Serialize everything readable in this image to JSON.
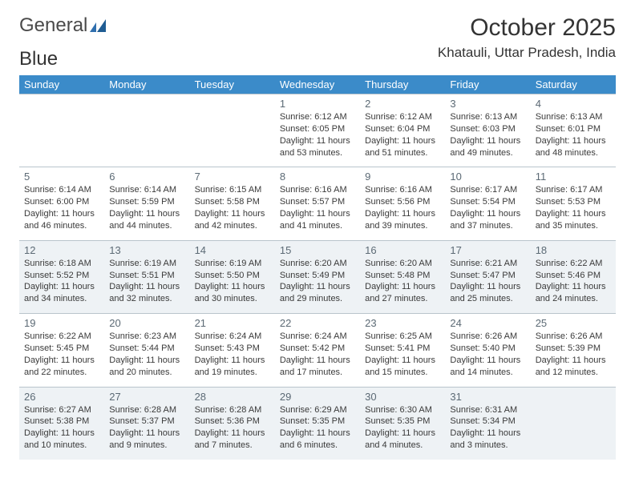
{
  "brand": {
    "name1": "General",
    "name2": "Blue",
    "color1": "#4a4a4a",
    "color2": "#2f6fae"
  },
  "title": "October 2025",
  "location": "Khatauli, Uttar Pradesh, India",
  "colors": {
    "header_bg": "#3b8bc9",
    "header_text": "#ffffff",
    "row_even_bg": "#eef2f5",
    "row_odd_bg": "#ffffff",
    "border": "#b9c4cc",
    "daynum": "#5c6a75",
    "body_text": "#3a3a3a"
  },
  "fonts": {
    "title_size": 30,
    "location_size": 17,
    "dayhead_size": 13,
    "daynum_size": 13,
    "cell_size": 11
  },
  "weekdays": [
    "Sunday",
    "Monday",
    "Tuesday",
    "Wednesday",
    "Thursday",
    "Friday",
    "Saturday"
  ],
  "weeks": [
    [
      null,
      null,
      null,
      {
        "n": "1",
        "sr": "6:12 AM",
        "ss": "6:05 PM",
        "dl": "11 hours and 53 minutes."
      },
      {
        "n": "2",
        "sr": "6:12 AM",
        "ss": "6:04 PM",
        "dl": "11 hours and 51 minutes."
      },
      {
        "n": "3",
        "sr": "6:13 AM",
        "ss": "6:03 PM",
        "dl": "11 hours and 49 minutes."
      },
      {
        "n": "4",
        "sr": "6:13 AM",
        "ss": "6:01 PM",
        "dl": "11 hours and 48 minutes."
      }
    ],
    [
      {
        "n": "5",
        "sr": "6:14 AM",
        "ss": "6:00 PM",
        "dl": "11 hours and 46 minutes."
      },
      {
        "n": "6",
        "sr": "6:14 AM",
        "ss": "5:59 PM",
        "dl": "11 hours and 44 minutes."
      },
      {
        "n": "7",
        "sr": "6:15 AM",
        "ss": "5:58 PM",
        "dl": "11 hours and 42 minutes."
      },
      {
        "n": "8",
        "sr": "6:16 AM",
        "ss": "5:57 PM",
        "dl": "11 hours and 41 minutes."
      },
      {
        "n": "9",
        "sr": "6:16 AM",
        "ss": "5:56 PM",
        "dl": "11 hours and 39 minutes."
      },
      {
        "n": "10",
        "sr": "6:17 AM",
        "ss": "5:54 PM",
        "dl": "11 hours and 37 minutes."
      },
      {
        "n": "11",
        "sr": "6:17 AM",
        "ss": "5:53 PM",
        "dl": "11 hours and 35 minutes."
      }
    ],
    [
      {
        "n": "12",
        "sr": "6:18 AM",
        "ss": "5:52 PM",
        "dl": "11 hours and 34 minutes."
      },
      {
        "n": "13",
        "sr": "6:19 AM",
        "ss": "5:51 PM",
        "dl": "11 hours and 32 minutes."
      },
      {
        "n": "14",
        "sr": "6:19 AM",
        "ss": "5:50 PM",
        "dl": "11 hours and 30 minutes."
      },
      {
        "n": "15",
        "sr": "6:20 AM",
        "ss": "5:49 PM",
        "dl": "11 hours and 29 minutes."
      },
      {
        "n": "16",
        "sr": "6:20 AM",
        "ss": "5:48 PM",
        "dl": "11 hours and 27 minutes."
      },
      {
        "n": "17",
        "sr": "6:21 AM",
        "ss": "5:47 PM",
        "dl": "11 hours and 25 minutes."
      },
      {
        "n": "18",
        "sr": "6:22 AM",
        "ss": "5:46 PM",
        "dl": "11 hours and 24 minutes."
      }
    ],
    [
      {
        "n": "19",
        "sr": "6:22 AM",
        "ss": "5:45 PM",
        "dl": "11 hours and 22 minutes."
      },
      {
        "n": "20",
        "sr": "6:23 AM",
        "ss": "5:44 PM",
        "dl": "11 hours and 20 minutes."
      },
      {
        "n": "21",
        "sr": "6:24 AM",
        "ss": "5:43 PM",
        "dl": "11 hours and 19 minutes."
      },
      {
        "n": "22",
        "sr": "6:24 AM",
        "ss": "5:42 PM",
        "dl": "11 hours and 17 minutes."
      },
      {
        "n": "23",
        "sr": "6:25 AM",
        "ss": "5:41 PM",
        "dl": "11 hours and 15 minutes."
      },
      {
        "n": "24",
        "sr": "6:26 AM",
        "ss": "5:40 PM",
        "dl": "11 hours and 14 minutes."
      },
      {
        "n": "25",
        "sr": "6:26 AM",
        "ss": "5:39 PM",
        "dl": "11 hours and 12 minutes."
      }
    ],
    [
      {
        "n": "26",
        "sr": "6:27 AM",
        "ss": "5:38 PM",
        "dl": "11 hours and 10 minutes."
      },
      {
        "n": "27",
        "sr": "6:28 AM",
        "ss": "5:37 PM",
        "dl": "11 hours and 9 minutes."
      },
      {
        "n": "28",
        "sr": "6:28 AM",
        "ss": "5:36 PM",
        "dl": "11 hours and 7 minutes."
      },
      {
        "n": "29",
        "sr": "6:29 AM",
        "ss": "5:35 PM",
        "dl": "11 hours and 6 minutes."
      },
      {
        "n": "30",
        "sr": "6:30 AM",
        "ss": "5:35 PM",
        "dl": "11 hours and 4 minutes."
      },
      {
        "n": "31",
        "sr": "6:31 AM",
        "ss": "5:34 PM",
        "dl": "11 hours and 3 minutes."
      },
      null
    ]
  ],
  "labels": {
    "sunrise": "Sunrise:",
    "sunset": "Sunset:",
    "daylight": "Daylight:"
  }
}
